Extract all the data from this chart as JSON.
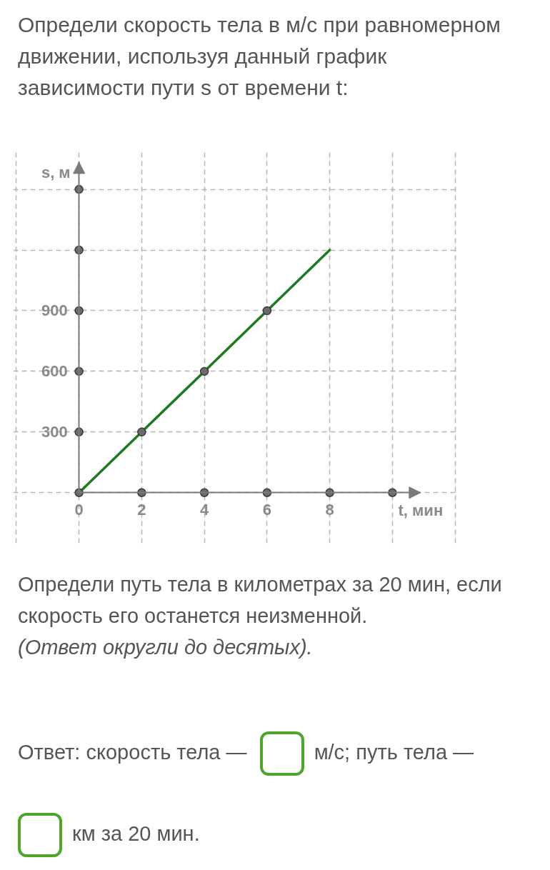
{
  "chart_data": {
    "type": "line",
    "title": "Определи скорость тела в м/с при равномерном движении, используя данный график зависимости пути s от времени t:",
    "xlabel": "t, мин",
    "ylabel": "s, м",
    "xlim": [
      -2.1,
      12.1
    ],
    "ylim": [
      -250,
      1700
    ],
    "xticks": [
      {
        "value": -2,
        "label": null
      },
      {
        "value": 0,
        "label": "0"
      },
      2,
      4,
      6,
      8,
      {
        "value": 10,
        "label": null
      },
      {
        "value": 12,
        "label": null
      }
    ],
    "yticks": [
      {
        "value": 0,
        "label": null
      },
      300,
      600,
      900,
      {
        "value": 1200,
        "label": null
      },
      {
        "value": 1500,
        "label": null
      }
    ],
    "grid": true,
    "series": [
      {
        "color": "#1e7a1e",
        "x": [
          0,
          2,
          4,
          6,
          8
        ],
        "values": [
          0,
          300,
          600,
          900,
          1200
        ]
      },
      {
        "type": "scatter",
        "color": "#6b6b6b",
        "marker": "circle",
        "x": [
          0,
          2,
          4,
          6,
          8,
          10,
          0,
          0,
          0,
          0,
          0,
          2,
          4,
          6
        ],
        "values": [
          0,
          0,
          0,
          0,
          0,
          0,
          300,
          600,
          900,
          1200,
          1500,
          300,
          600,
          900
        ]
      }
    ],
    "annotations": [
      "Определи путь тела в километрах за 20 мин, если скорость его останется неизменной.",
      "(Ответ округли до десятых).",
      "Ответ: скорость тела —",
      "м/с; путь тела —",
      "км за 20 мин."
    ]
  }
}
